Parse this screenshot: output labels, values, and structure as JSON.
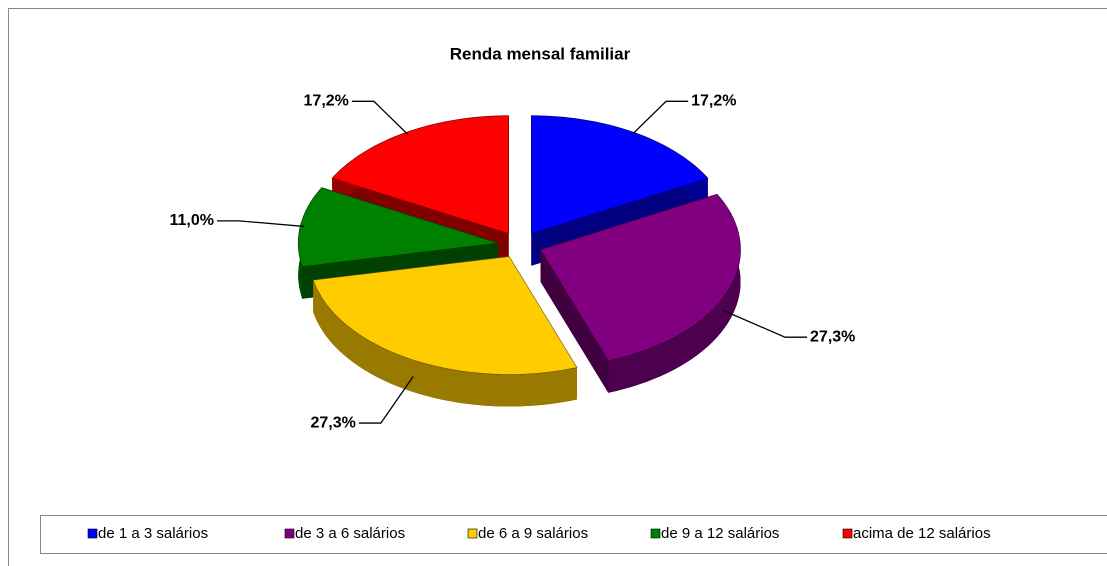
{
  "chart_data": {
    "type": "pie3d",
    "title": "Renda mensal familiar",
    "categories": [
      "de 1 a 3 salários",
      "de 3 a 6 salários",
      "de 6 a 9 salários",
      "de 9 a 12 salários",
      "acima de 12 salários"
    ],
    "values": [
      17.2,
      27.3,
      27.3,
      11.0,
      17.2
    ],
    "value_labels": [
      "17,2%",
      "27,3%",
      "27,3%",
      "11,0%",
      "17,2%"
    ],
    "colors": [
      "#0000ff",
      "#800080",
      "#ffcc00",
      "#008000",
      "#ff0000"
    ],
    "legend": "bottom"
  }
}
